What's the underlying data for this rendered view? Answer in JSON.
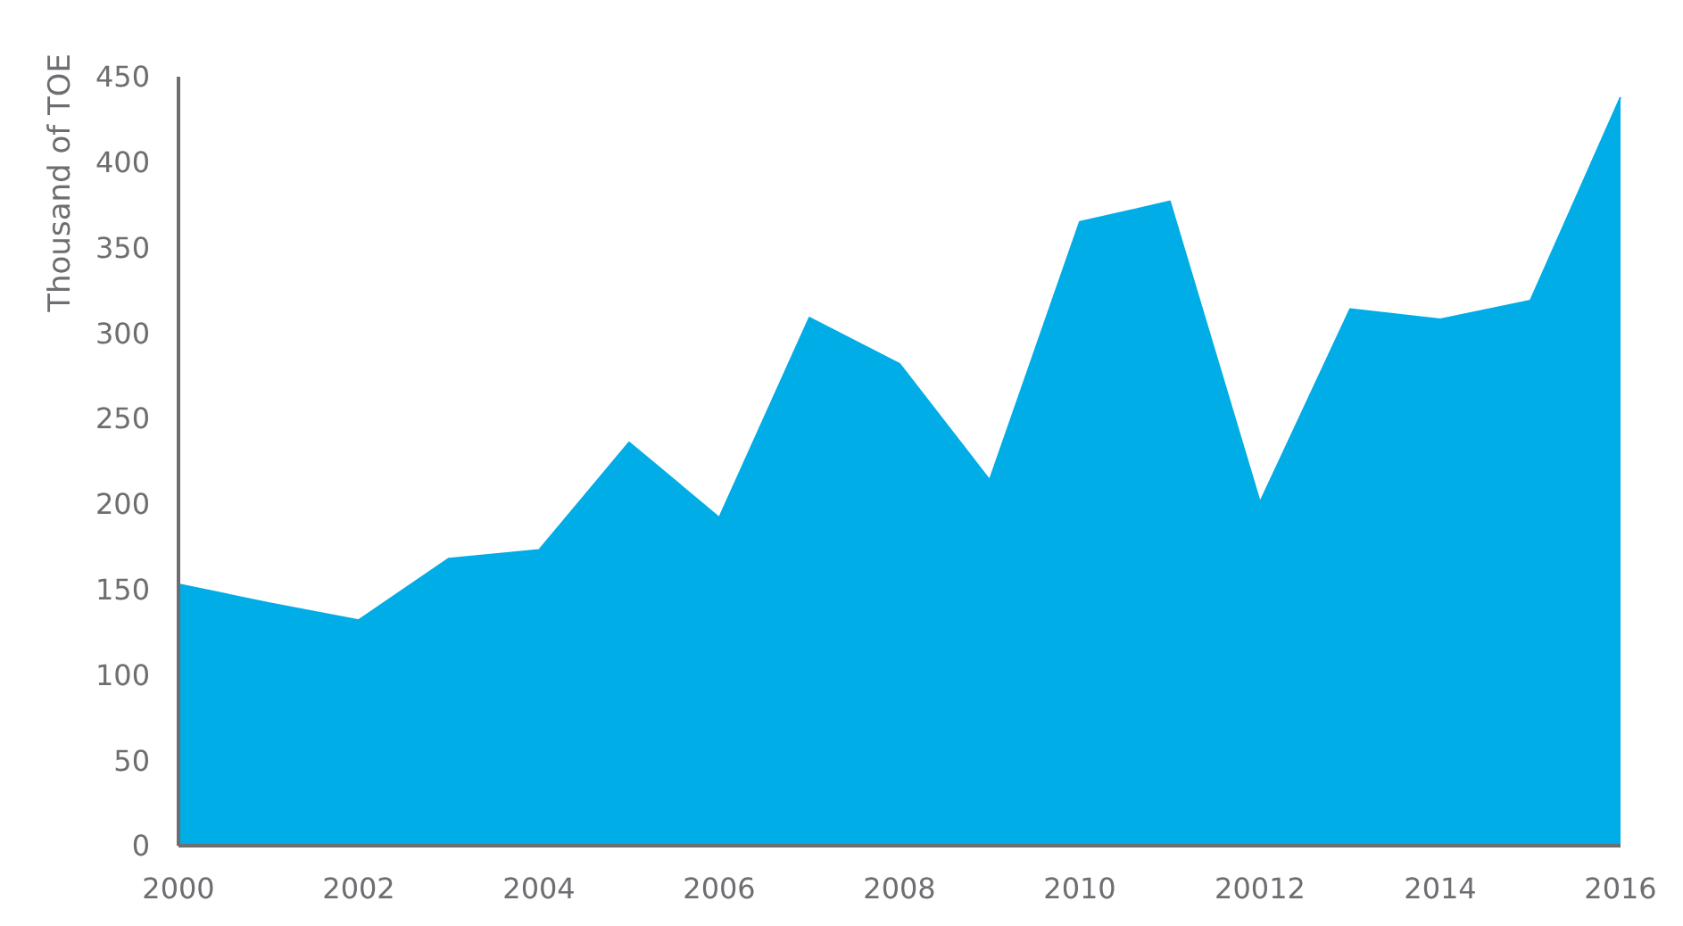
{
  "chart_data": {
    "type": "area",
    "ylabel": "Thousand of TOE",
    "categories": [
      "2000",
      null,
      "2002",
      null,
      "2004",
      null,
      "2006",
      null,
      "2008",
      null,
      "2010",
      null,
      "20012",
      null,
      "2014",
      null,
      "2016"
    ],
    "values": [
      153,
      142,
      132,
      168,
      173,
      236,
      192,
      309,
      282,
      214,
      365,
      377,
      201,
      314,
      308,
      319,
      438
    ],
    "color": "#00ade6",
    "ylim": [
      0,
      450
    ],
    "yticks": [
      0,
      50,
      100,
      150,
      200,
      250,
      300,
      350,
      400,
      450
    ]
  }
}
